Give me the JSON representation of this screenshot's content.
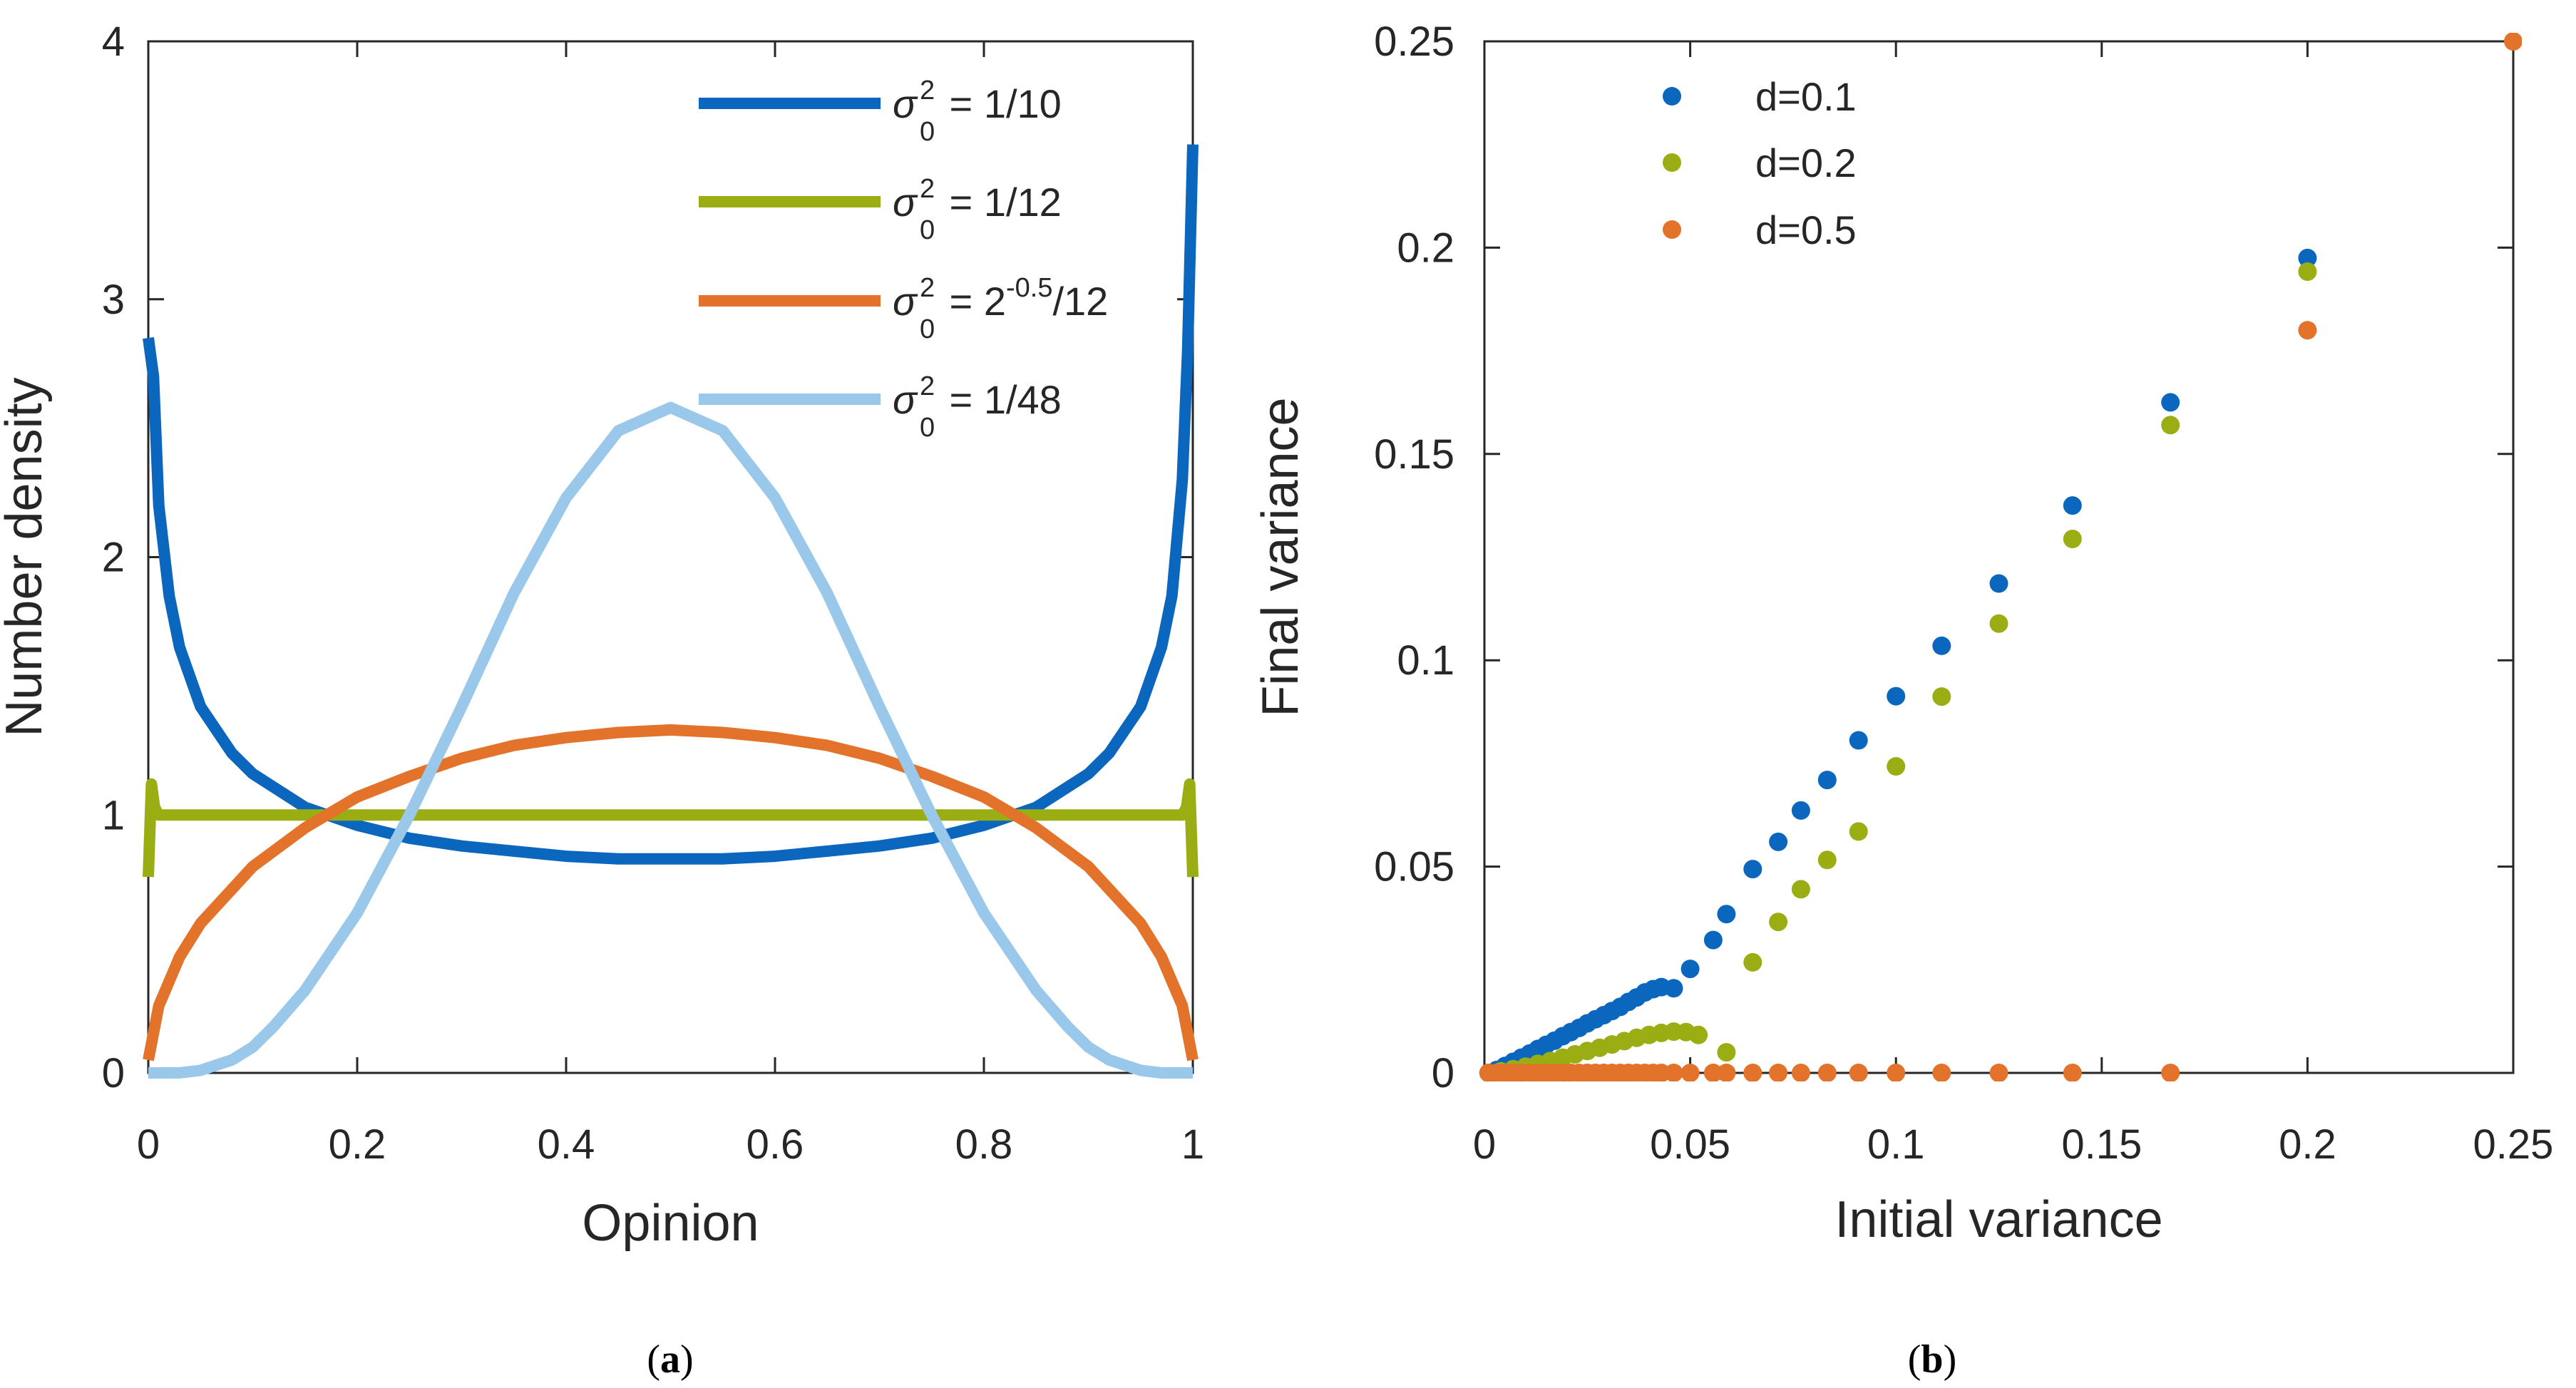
{
  "chart_data": [
    {
      "type": "line",
      "panel_label": "(a)",
      "xlabel": "Opinion",
      "ylabel": "Number density",
      "xlim": [
        0,
        1
      ],
      "ylim": [
        0,
        4
      ],
      "xticks": [
        "0",
        "0.2",
        "0.4",
        "0.6",
        "0.8",
        "1"
      ],
      "yticks": [
        "0",
        "1",
        "2",
        "3",
        "4"
      ],
      "legend_position": "top-right",
      "series": [
        {
          "name": "σ0² = 1/10",
          "legend": {
            "pre": "σ",
            "sup": "2",
            "sub": "0",
            "post": " = 1/10"
          },
          "color": "#0b66bd",
          "x": [
            0,
            0.005,
            0.01,
            0.02,
            0.03,
            0.05,
            0.08,
            0.1,
            0.15,
            0.2,
            0.25,
            0.3,
            0.35,
            0.4,
            0.45,
            0.5,
            0.55,
            0.6,
            0.65,
            0.7,
            0.75,
            0.8,
            0.85,
            0.9,
            0.92,
            0.95,
            0.97,
            0.98,
            0.99,
            0.995,
            1
          ],
          "y": [
            2.85,
            2.7,
            2.2,
            1.85,
            1.65,
            1.42,
            1.24,
            1.16,
            1.03,
            0.96,
            0.91,
            0.88,
            0.86,
            0.84,
            0.83,
            0.83,
            0.83,
            0.84,
            0.86,
            0.88,
            0.91,
            0.96,
            1.03,
            1.16,
            1.24,
            1.42,
            1.65,
            1.85,
            2.3,
            2.8,
            3.6
          ]
        },
        {
          "name": "σ0² = 1/12",
          "legend": {
            "pre": "σ",
            "sup": "2",
            "sub": "0",
            "post": " = 1/12"
          },
          "color": "#9aad12",
          "x": [
            0,
            0.003,
            0.006,
            0.01,
            0.5,
            0.99,
            0.994,
            0.997,
            1
          ],
          "y": [
            0.76,
            1.12,
            1.03,
            1.0,
            1.0,
            1.0,
            1.03,
            1.12,
            0.76
          ]
        },
        {
          "name": "σ0² = 2^-0.5/12",
          "legend": {
            "pre": "σ",
            "sup": "2",
            "sub": "0",
            "post": " = 2",
            "sup2": "-0.5",
            "post2": "/12"
          },
          "color": "#e3722a",
          "x": [
            0,
            0.01,
            0.03,
            0.05,
            0.1,
            0.15,
            0.2,
            0.25,
            0.3,
            0.35,
            0.4,
            0.45,
            0.5,
            0.55,
            0.6,
            0.65,
            0.7,
            0.75,
            0.8,
            0.85,
            0.9,
            0.95,
            0.97,
            0.99,
            1
          ],
          "y": [
            0.05,
            0.26,
            0.45,
            0.58,
            0.8,
            0.95,
            1.07,
            1.15,
            1.22,
            1.27,
            1.3,
            1.32,
            1.33,
            1.32,
            1.3,
            1.27,
            1.22,
            1.15,
            1.07,
            0.95,
            0.8,
            0.58,
            0.45,
            0.26,
            0.05
          ]
        },
        {
          "name": "σ0² = 1/48",
          "legend": {
            "pre": "σ",
            "sup": "2",
            "sub": "0",
            "post": " = 1/48"
          },
          "color": "#9ac8ea",
          "x": [
            0,
            0.03,
            0.05,
            0.08,
            0.1,
            0.12,
            0.15,
            0.2,
            0.25,
            0.3,
            0.35,
            0.4,
            0.45,
            0.5,
            0.55,
            0.6,
            0.65,
            0.7,
            0.75,
            0.8,
            0.85,
            0.88,
            0.9,
            0.92,
            0.95,
            0.97,
            1
          ],
          "y": [
            0,
            0,
            0.01,
            0.05,
            0.1,
            0.18,
            0.32,
            0.62,
            1.0,
            1.42,
            1.86,
            2.23,
            2.49,
            2.58,
            2.49,
            2.23,
            1.86,
            1.42,
            1.0,
            0.62,
            0.32,
            0.18,
            0.1,
            0.05,
            0.01,
            0,
            0
          ]
        }
      ]
    },
    {
      "type": "scatter",
      "panel_label": "(b)",
      "xlabel": "Initial variance",
      "ylabel": "Final variance",
      "xlim": [
        0,
        0.25
      ],
      "ylim": [
        0,
        0.25
      ],
      "xticks": [
        "0",
        "0.05",
        "0.1",
        "0.15",
        "0.2",
        "0.25"
      ],
      "yticks": [
        "0",
        "0.05",
        "0.1",
        "0.15",
        "0.2",
        "0.25"
      ],
      "legend_position": "top-left",
      "series": [
        {
          "name": "d=0.1",
          "color": "#0b66bd",
          "x": [
            0.001,
            0.003,
            0.005,
            0.007,
            0.009,
            0.011,
            0.013,
            0.015,
            0.017,
            0.019,
            0.021,
            0.023,
            0.025,
            0.027,
            0.029,
            0.031,
            0.033,
            0.035,
            0.037,
            0.039,
            0.041,
            0.043,
            0.046,
            0.05,
            0.0556,
            0.0588,
            0.0652,
            0.0714,
            0.0769,
            0.0833,
            0.0909,
            0.1,
            0.1111,
            0.125,
            0.1429,
            0.1667,
            0.2
          ],
          "y": [
            0.0,
            0.0007,
            0.0017,
            0.0027,
            0.0037,
            0.0047,
            0.0058,
            0.0068,
            0.0078,
            0.0089,
            0.0099,
            0.0109,
            0.012,
            0.013,
            0.014,
            0.015,
            0.016,
            0.0172,
            0.0183,
            0.0195,
            0.0203,
            0.0208,
            0.0205,
            0.0252,
            0.0322,
            0.0385,
            0.0494,
            0.056,
            0.0636,
            0.071,
            0.0806,
            0.0913,
            0.1035,
            0.1186,
            0.1375,
            0.1625,
            0.1975
          ]
        },
        {
          "name": "d=0.2",
          "color": "#9aad12",
          "x": [
            0.001,
            0.004,
            0.007,
            0.01,
            0.013,
            0.016,
            0.019,
            0.022,
            0.025,
            0.028,
            0.031,
            0.034,
            0.037,
            0.04,
            0.043,
            0.046,
            0.049,
            0.052,
            0.0588,
            0.0652,
            0.0714,
            0.0769,
            0.0833,
            0.0909,
            0.1,
            0.1111,
            0.125,
            0.1429,
            0.1667,
            0.2
          ],
          "y": [
            0.0,
            0.0004,
            0.0009,
            0.0015,
            0.0022,
            0.0029,
            0.0037,
            0.0045,
            0.0053,
            0.0061,
            0.0069,
            0.0077,
            0.0085,
            0.0092,
            0.0097,
            0.01,
            0.0099,
            0.0092,
            0.005,
            0.0268,
            0.0366,
            0.0445,
            0.0516,
            0.0585,
            0.0743,
            0.0912,
            0.1089,
            0.1294,
            0.157,
            0.1942
          ]
        },
        {
          "name": "d=0.5",
          "color": "#e3722a",
          "x": [
            0.001,
            0.003,
            0.005,
            0.007,
            0.009,
            0.011,
            0.013,
            0.015,
            0.017,
            0.019,
            0.021,
            0.023,
            0.025,
            0.027,
            0.029,
            0.031,
            0.033,
            0.035,
            0.037,
            0.039,
            0.041,
            0.043,
            0.046,
            0.05,
            0.0556,
            0.0588,
            0.0652,
            0.0714,
            0.0769,
            0.0833,
            0.0909,
            0.1,
            0.1111,
            0.125,
            0.1429,
            0.1667,
            0.2,
            0.25
          ],
          "y": [
            0,
            0,
            0,
            0,
            0,
            0,
            0,
            0,
            0,
            0,
            0,
            0,
            0,
            0,
            0,
            0,
            0,
            0,
            0,
            0,
            0,
            0,
            0,
            0,
            0,
            0,
            0,
            0,
            0,
            0,
            0,
            0,
            0,
            0,
            0,
            0,
            0.18,
            0.25
          ]
        }
      ]
    }
  ]
}
